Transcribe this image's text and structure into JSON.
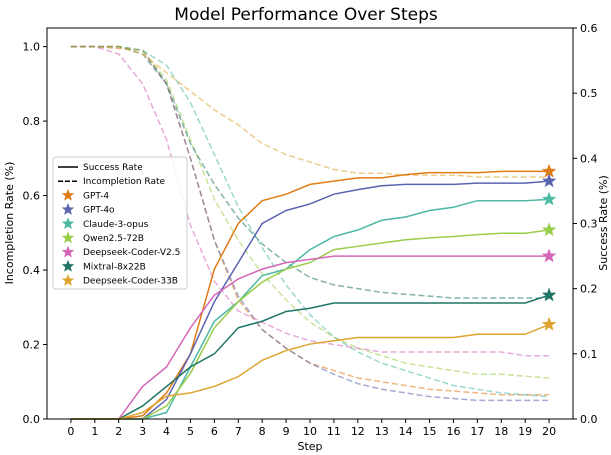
{
  "chart_data": {
    "type": "line",
    "title": "Model Performance Over Steps",
    "xlabel": "Step",
    "ylabel_left": "Incompletion Rate (%)",
    "ylabel_right": "Success Rate (%)",
    "x": [
      0,
      1,
      2,
      3,
      4,
      5,
      6,
      7,
      8,
      9,
      10,
      11,
      12,
      13,
      14,
      15,
      16,
      17,
      18,
      19,
      20
    ],
    "xticks": [
      "0",
      "1",
      "2",
      "3",
      "4",
      "5",
      "6",
      "7",
      "8",
      "9",
      "10",
      "11",
      "12",
      "13",
      "14",
      "15",
      "16",
      "17",
      "18",
      "19",
      "20"
    ],
    "ylim_left": [
      0,
      1.05
    ],
    "ylim_right": [
      0,
      0.6
    ],
    "yticks_left": [
      "0.0",
      "0.2",
      "0.4",
      "0.6",
      "0.8",
      "1.0"
    ],
    "yticks_right": [
      "0.0",
      "0.1",
      "0.2",
      "0.3",
      "0.4",
      "0.5",
      "0.6"
    ],
    "legend_position": "center-left",
    "legend_style_entries": [
      {
        "label": "Success Rate",
        "style": "solid"
      },
      {
        "label": "Incompletion Rate",
        "style": "dashed"
      }
    ],
    "series": [
      {
        "name": "GPT-4",
        "color": "#e07b16",
        "success": [
          0,
          0,
          0,
          0.005,
          0.04,
          0.1,
          0.23,
          0.3,
          0.335,
          0.345,
          0.36,
          0.365,
          0.37,
          0.37,
          0.375,
          0.378,
          0.378,
          0.378,
          0.38,
          0.38,
          0.38
        ],
        "incompletion": [
          1.0,
          1.0,
          0.995,
          0.99,
          0.9,
          0.7,
          0.48,
          0.32,
          0.24,
          0.19,
          0.15,
          0.13,
          0.11,
          0.1,
          0.09,
          0.08,
          0.075,
          0.07,
          0.065,
          0.065,
          0.065
        ]
      },
      {
        "name": "GPT-4o",
        "color": "#5b63b0",
        "success": [
          0,
          0,
          0,
          0,
          0.03,
          0.1,
          0.18,
          0.24,
          0.3,
          0.32,
          0.33,
          0.345,
          0.352,
          0.358,
          0.36,
          0.36,
          0.36,
          0.362,
          0.362,
          0.362,
          0.365
        ],
        "incompletion": [
          1.0,
          1.0,
          1.0,
          0.99,
          0.9,
          0.7,
          0.48,
          0.33,
          0.24,
          0.19,
          0.15,
          0.12,
          0.095,
          0.08,
          0.07,
          0.06,
          0.055,
          0.05,
          0.05,
          0.05,
          0.05
        ]
      },
      {
        "name": "Claude-3-opus",
        "color": "#4db8a4",
        "success": [
          0,
          0,
          0,
          0,
          0.01,
          0.08,
          0.15,
          0.18,
          0.22,
          0.23,
          0.26,
          0.28,
          0.29,
          0.305,
          0.31,
          0.32,
          0.325,
          0.335,
          0.335,
          0.335,
          0.337
        ],
        "incompletion": [
          1.0,
          1.0,
          1.0,
          0.99,
          0.95,
          0.85,
          0.71,
          0.57,
          0.46,
          0.36,
          0.28,
          0.22,
          0.18,
          0.15,
          0.13,
          0.11,
          0.09,
          0.08,
          0.07,
          0.065,
          0.06
        ]
      },
      {
        "name": "Qwen2.5-72B",
        "color": "#9acd4a",
        "success": [
          0,
          0,
          0,
          0,
          0.02,
          0.07,
          0.14,
          0.18,
          0.21,
          0.23,
          0.24,
          0.26,
          0.265,
          0.27,
          0.275,
          0.278,
          0.28,
          0.283,
          0.285,
          0.285,
          0.29
        ],
        "incompletion": [
          1.0,
          1.0,
          1.0,
          0.99,
          0.91,
          0.75,
          0.59,
          0.48,
          0.39,
          0.32,
          0.26,
          0.22,
          0.19,
          0.17,
          0.15,
          0.14,
          0.13,
          0.12,
          0.12,
          0.115,
          0.11
        ]
      },
      {
        "name": "Deepseek-Coder-V2.5",
        "color": "#d565b9",
        "success": [
          0,
          0,
          0,
          0.05,
          0.08,
          0.14,
          0.19,
          0.215,
          0.23,
          0.24,
          0.245,
          0.25,
          0.25,
          0.25,
          0.25,
          0.25,
          0.25,
          0.25,
          0.25,
          0.25,
          0.25
        ],
        "incompletion": [
          1.0,
          1.0,
          0.98,
          0.9,
          0.75,
          0.52,
          0.37,
          0.29,
          0.26,
          0.23,
          0.21,
          0.2,
          0.19,
          0.18,
          0.18,
          0.18,
          0.18,
          0.18,
          0.18,
          0.17,
          0.17
        ]
      },
      {
        "name": "Mixtral-8x22B",
        "color": "#1f7565",
        "success": [
          0,
          0,
          0,
          0.02,
          0.05,
          0.08,
          0.1,
          0.14,
          0.15,
          0.165,
          0.17,
          0.178,
          0.178,
          0.178,
          0.178,
          0.178,
          0.178,
          0.178,
          0.178,
          0.178,
          0.19
        ],
        "incompletion": [
          1.0,
          1.0,
          1.0,
          0.98,
          0.9,
          0.74,
          0.63,
          0.54,
          0.47,
          0.42,
          0.38,
          0.36,
          0.35,
          0.34,
          0.335,
          0.33,
          0.325,
          0.325,
          0.325,
          0.325,
          0.325
        ]
      },
      {
        "name": "Deepseek-Coder-33B",
        "color": "#dea42e",
        "success": [
          0,
          0,
          0,
          0.01,
          0.035,
          0.04,
          0.05,
          0.065,
          0.09,
          0.105,
          0.115,
          0.12,
          0.125,
          0.125,
          0.125,
          0.125,
          0.125,
          0.13,
          0.13,
          0.13,
          0.145
        ],
        "incompletion": [
          1.0,
          1.0,
          1.0,
          0.98,
          0.93,
          0.88,
          0.83,
          0.79,
          0.74,
          0.71,
          0.69,
          0.67,
          0.66,
          0.66,
          0.655,
          0.655,
          0.655,
          0.65,
          0.65,
          0.65,
          0.65
        ]
      }
    ]
  }
}
